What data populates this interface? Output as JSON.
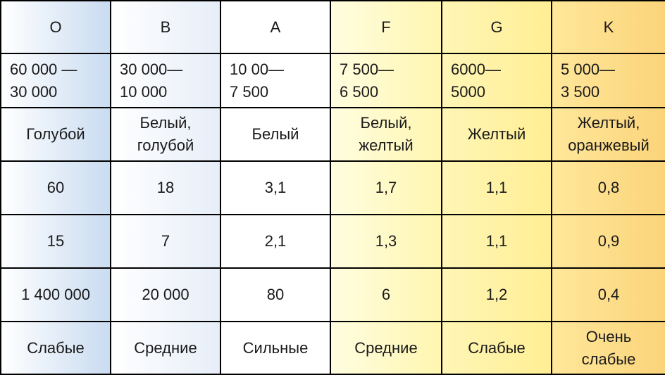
{
  "columns": [
    {
      "class": "O",
      "temperature": [
        "60 000 —",
        "30 000"
      ],
      "color": [
        "Голубой"
      ],
      "value_row_4": "60",
      "value_row_5": "15",
      "value_row_6": "1 400 000",
      "strength": [
        "Слабые"
      ]
    },
    {
      "class": "B",
      "temperature": [
        "30 000—",
        "10 000"
      ],
      "color": [
        "Белый,",
        "голубой"
      ],
      "value_row_4": "18",
      "value_row_5": "7",
      "value_row_6": "20 000",
      "strength": [
        "Средние"
      ]
    },
    {
      "class": "A",
      "temperature": [
        "10 00—",
        "7 500"
      ],
      "color": [
        "Белый"
      ],
      "value_row_4": "3,1",
      "value_row_5": "2,1",
      "value_row_6": "80",
      "strength": [
        "Сильные"
      ]
    },
    {
      "class": "F",
      "temperature": [
        "7 500—",
        "6 500"
      ],
      "color": [
        "Белый,",
        "желтый"
      ],
      "value_row_4": "1,7",
      "value_row_5": "1,3",
      "value_row_6": "6",
      "strength": [
        "Средние"
      ]
    },
    {
      "class": "G",
      "temperature": [
        "6000—",
        "5000"
      ],
      "color": [
        "Желтый"
      ],
      "value_row_4": "1,1",
      "value_row_5": "1,1",
      "value_row_6": "1,2",
      "strength": [
        "Слабые"
      ]
    },
    {
      "class": "K",
      "temperature": [
        "5 000—",
        "3 500"
      ],
      "color": [
        "Желтый,",
        "оранжевый"
      ],
      "value_row_4": "0,8",
      "value_row_5": "0,9",
      "value_row_6": "0,4",
      "strength": [
        "Очень",
        "слабые"
      ]
    }
  ],
  "column_shades": [
    "#c9dcf1",
    "#e7eef8",
    "#ffffff",
    "#fff6b0",
    "#ffee94",
    "#fbd47a"
  ]
}
